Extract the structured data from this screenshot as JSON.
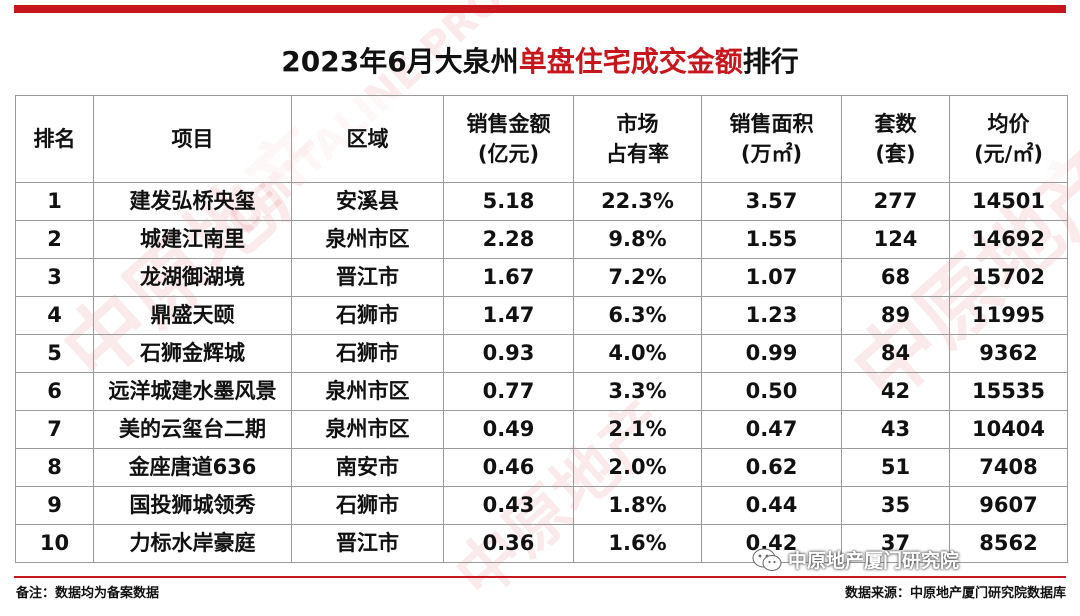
{
  "title": {
    "prefix": "2023年6月大泉州",
    "highlight": "单盘住宅成交金额",
    "suffix": "排行"
  },
  "watermark_text": {
    "cn": "中原地产",
    "en": "CENTALINE PROPERTY"
  },
  "headers": {
    "rank": "排名",
    "project": "项目",
    "region": "区域",
    "amount_line1": "销售金额",
    "amount_line2": "(亿元)",
    "share_line1": "市场",
    "share_line2": "占有率",
    "area_line1": "销售面积",
    "area_line2": "(万㎡)",
    "units_line1": "套数",
    "units_line2": "(套)",
    "price_line1": "均价",
    "price_line2": "(元/㎡)"
  },
  "rows": [
    {
      "rank": "1",
      "project": "建发弘桥央玺",
      "region": "安溪县",
      "amount": "5.18",
      "share": "22.3%",
      "area": "3.57",
      "units": "277",
      "price": "14501"
    },
    {
      "rank": "2",
      "project": "城建江南里",
      "region": "泉州市区",
      "amount": "2.28",
      "share": "9.8%",
      "area": "1.55",
      "units": "124",
      "price": "14692"
    },
    {
      "rank": "3",
      "project": "龙湖御湖境",
      "region": "晋江市",
      "amount": "1.67",
      "share": "7.2%",
      "area": "1.07",
      "units": "68",
      "price": "15702"
    },
    {
      "rank": "4",
      "project": "鼎盛天颐",
      "region": "石狮市",
      "amount": "1.47",
      "share": "6.3%",
      "area": "1.23",
      "units": "89",
      "price": "11995"
    },
    {
      "rank": "5",
      "project": "石狮金辉城",
      "region": "石狮市",
      "amount": "0.93",
      "share": "4.0%",
      "area": "0.99",
      "units": "84",
      "price": "9362"
    },
    {
      "rank": "6",
      "project": "远洋城建水墨风景",
      "region": "泉州市区",
      "amount": "0.77",
      "share": "3.3%",
      "area": "0.50",
      "units": "42",
      "price": "15535"
    },
    {
      "rank": "7",
      "project": "美的云玺台二期",
      "region": "泉州市区",
      "amount": "0.49",
      "share": "2.1%",
      "area": "0.47",
      "units": "43",
      "price": "10404"
    },
    {
      "rank": "8",
      "project": "金座唐道636",
      "region": "南安市",
      "amount": "0.46",
      "share": "2.0%",
      "area": "0.62",
      "units": "51",
      "price": "7408"
    },
    {
      "rank": "9",
      "project": "国投狮城领秀",
      "region": "石狮市",
      "amount": "0.43",
      "share": "1.8%",
      "area": "0.44",
      "units": "35",
      "price": "9607"
    },
    {
      "rank": "10",
      "project": "力标水岸豪庭",
      "region": "晋江市",
      "amount": "0.36",
      "share": "1.6%",
      "area": "0.42",
      "units": "37",
      "price": "8562"
    }
  ],
  "footer": {
    "note": "备注：数据均为备案数据",
    "source": "数据来源：中原地产厦门研究院数据库"
  },
  "wechat_badge": {
    "icon": "wechat-icon",
    "label": "中原地产厦门研究院"
  },
  "colors": {
    "brand_red": "#c8161d"
  }
}
